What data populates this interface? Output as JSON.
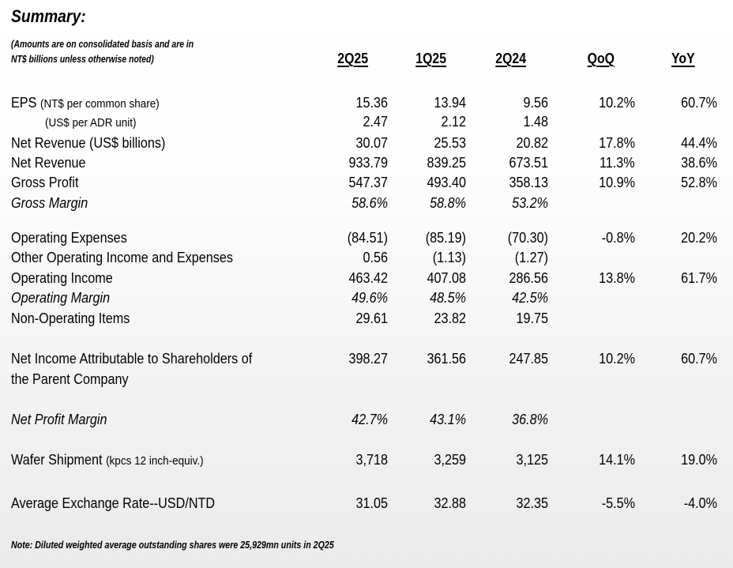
{
  "title": "Summary:",
  "subtitle_line1": "(Amounts are on consolidated basis and are in",
  "subtitle_line2": "NT$ billions unless otherwise noted)",
  "columns": [
    "2Q25",
    "1Q25",
    "2Q24",
    "QoQ",
    "YoY"
  ],
  "rows": [
    {
      "label": "EPS",
      "sub": "(NT$ per common share)",
      "values": [
        "15.36",
        "13.94",
        "9.56",
        "10.2%",
        "60.7%"
      ]
    },
    {
      "label": "",
      "sub": "(US$ per ADR unit)",
      "indent": true,
      "values": [
        "2.47",
        "2.12",
        "1.48",
        "",
        ""
      ]
    },
    {
      "label": "Net Revenue (US$ billions)",
      "values": [
        "30.07",
        "25.53",
        "20.82",
        "17.8%",
        "44.4%"
      ]
    },
    {
      "label": "Net Revenue",
      "values": [
        "933.79",
        "839.25",
        "673.51",
        "11.3%",
        "38.6%"
      ]
    },
    {
      "label": "Gross Profit",
      "values": [
        "547.37",
        "493.40",
        "358.13",
        "10.9%",
        "52.8%"
      ]
    },
    {
      "label": "Gross Margin",
      "italic": true,
      "values": [
        "58.6%",
        "58.8%",
        "53.2%",
        "",
        ""
      ]
    },
    {
      "label": "Operating Expenses",
      "values": [
        "(84.51)",
        "(85.19)",
        "(70.30)",
        "-0.8%",
        "20.2%"
      ]
    },
    {
      "label": "Other Operating Income and Expenses",
      "values": [
        "0.56",
        "(1.13)",
        "(1.27)",
        "",
        ""
      ]
    },
    {
      "label": "Operating Income",
      "values": [
        "463.42",
        "407.08",
        "286.56",
        "13.8%",
        "61.7%"
      ]
    },
    {
      "label": "Operating Margin",
      "italic": true,
      "values": [
        "49.6%",
        "48.5%",
        "42.5%",
        "",
        ""
      ]
    },
    {
      "label": "Non-Operating Items",
      "values": [
        "29.61",
        "23.82",
        "19.75",
        "",
        ""
      ]
    },
    {
      "label": "Net Income Attributable to Shareholders of",
      "label2": "the Parent Company",
      "values": [
        "398.27",
        "361.56",
        "247.85",
        "10.2%",
        "60.7%"
      ]
    },
    {
      "label": "Net Profit Margin",
      "italic": true,
      "values": [
        "42.7%",
        "43.1%",
        "36.8%",
        "",
        ""
      ]
    },
    {
      "label": "Wafer Shipment",
      "sub": "(kpcs 12 inch-equiv.)",
      "values": [
        "3,718",
        "3,259",
        "3,125",
        "14.1%",
        "19.0%"
      ]
    },
    {
      "label": "Average Exchange Rate--USD/NTD",
      "values": [
        "31.05",
        "32.88",
        "32.35",
        "-5.5%",
        "-4.0%"
      ]
    }
  ],
  "note": "Note: Diluted weighted average outstanding shares were 25,929mn units in 2Q25"
}
